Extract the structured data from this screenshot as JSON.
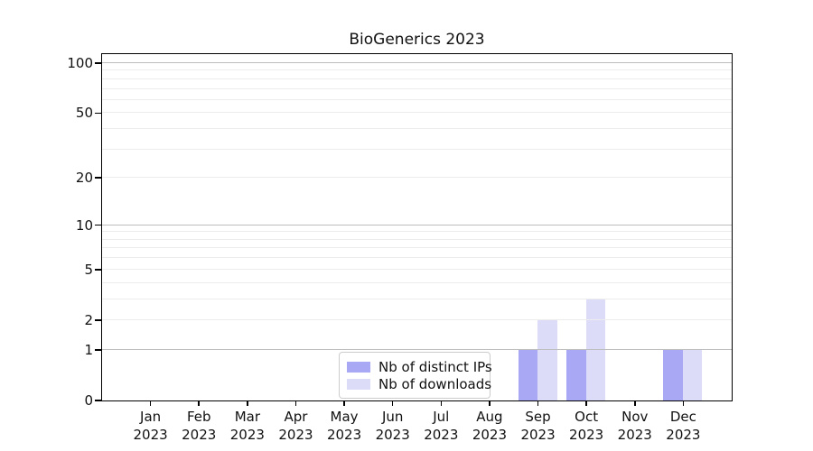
{
  "title": "BioGenerics 2023",
  "chart_data": {
    "type": "bar",
    "title": "BioGenerics 2023",
    "categories": [
      "Jan 2023",
      "Feb 2023",
      "Mar 2023",
      "Apr 2023",
      "May 2023",
      "Jun 2023",
      "Jul 2023",
      "Aug 2023",
      "Sep 2023",
      "Oct 2023",
      "Nov 2023",
      "Dec 2023"
    ],
    "series": [
      {
        "name": "Nb of distinct IPs",
        "color": "#a8a8f4",
        "values": [
          0,
          0,
          0,
          0,
          0,
          0,
          0,
          0,
          1,
          1,
          0,
          1
        ]
      },
      {
        "name": "Nb of downloads",
        "color": "#dcdcf8",
        "values": [
          0,
          0,
          0,
          0,
          0,
          0,
          0,
          0,
          2,
          3,
          0,
          1
        ]
      }
    ],
    "xlabel": "",
    "ylabel": "",
    "yscale": "log(1+y)",
    "ylim": [
      0,
      113
    ],
    "ytick_values": [
      0,
      1,
      2,
      5,
      10,
      20,
      50,
      100
    ],
    "ytick_labels": [
      "0",
      "1",
      "2",
      "5",
      "10",
      "20",
      "50",
      "100"
    ],
    "major_grid_values": [
      1,
      10,
      100
    ],
    "minor_grid_values": [
      2,
      3,
      4,
      5,
      6,
      7,
      8,
      9,
      20,
      30,
      40,
      50,
      60,
      70,
      80,
      90
    ],
    "grid": "horizontal",
    "legend_position": "lower center"
  },
  "colors": {
    "background": "#ffffff",
    "spine": "#000000",
    "text": "#111111",
    "major_grid": "#bdbdbd",
    "minor_grid": "#ececec",
    "legend_border": "#cccccc"
  }
}
